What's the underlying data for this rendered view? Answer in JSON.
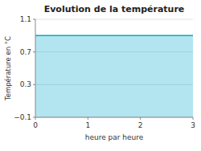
{
  "chart_data": {
    "type": "area",
    "title": "Evolution de la température",
    "xlabel": "heure par heure",
    "ylabel": "Température en °C",
    "x": [
      0,
      3
    ],
    "values": [
      0.9,
      0.9
    ],
    "color": "#00aacc",
    "xlim": [
      0,
      3
    ],
    "ylim": [
      -0.1,
      1.1
    ],
    "xticks": [
      0,
      1,
      2,
      3
    ],
    "yticks": [
      {
        "value": -0.1,
        "label": "−0.1"
      },
      0.3,
      0.7,
      1.1
    ],
    "grid": true
  }
}
